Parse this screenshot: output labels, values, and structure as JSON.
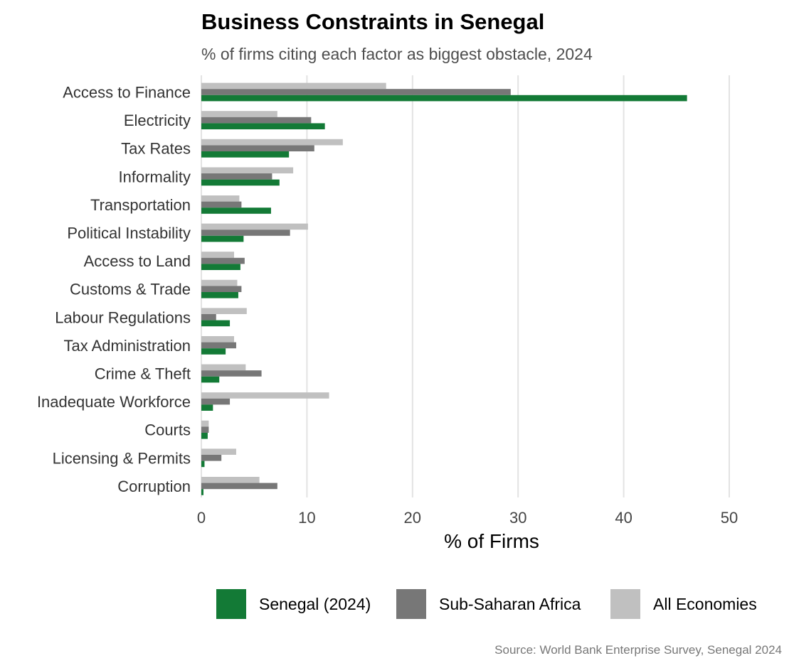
{
  "chart_data": {
    "type": "bar",
    "orientation": "horizontal",
    "title": "Business Constraints in Senegal",
    "subtitle": "% of firms citing each factor as biggest obstacle, 2024",
    "xlabel": "% of Firms",
    "ylabel": "",
    "xlim": [
      0,
      52
    ],
    "xticks": [
      0,
      10,
      20,
      30,
      40,
      50
    ],
    "grid": "vertical",
    "legend_position": "bottom",
    "source": "Source: World Bank Enterprise Survey, Senegal 2024",
    "categories": [
      "Access to Finance",
      "Electricity",
      "Tax Rates",
      "Informality",
      "Transportation",
      "Political Instability",
      "Access to Land",
      "Customs & Trade",
      "Labour Regulations",
      "Tax Administration",
      "Crime & Theft",
      "Inadequate Workforce",
      "Courts",
      "Licensing & Permits",
      "Corruption"
    ],
    "series": [
      {
        "name": "Senegal (2024)",
        "color": "#137a36",
        "values": [
          46.0,
          11.7,
          8.3,
          7.4,
          6.6,
          4.0,
          3.7,
          3.5,
          2.7,
          2.3,
          1.7,
          1.1,
          0.6,
          0.3,
          0.2
        ]
      },
      {
        "name": "Sub-Saharan Africa",
        "color": "#777777",
        "values": [
          29.3,
          10.4,
          10.7,
          6.7,
          3.8,
          8.4,
          4.1,
          3.8,
          1.4,
          3.3,
          5.7,
          2.7,
          0.7,
          1.9,
          7.2
        ]
      },
      {
        "name": "All Economies",
        "color": "#c0c0c0",
        "values": [
          17.5,
          7.2,
          13.4,
          8.7,
          3.6,
          10.1,
          3.1,
          3.4,
          4.3,
          3.1,
          4.2,
          12.1,
          0.7,
          3.3,
          5.5
        ]
      }
    ]
  }
}
